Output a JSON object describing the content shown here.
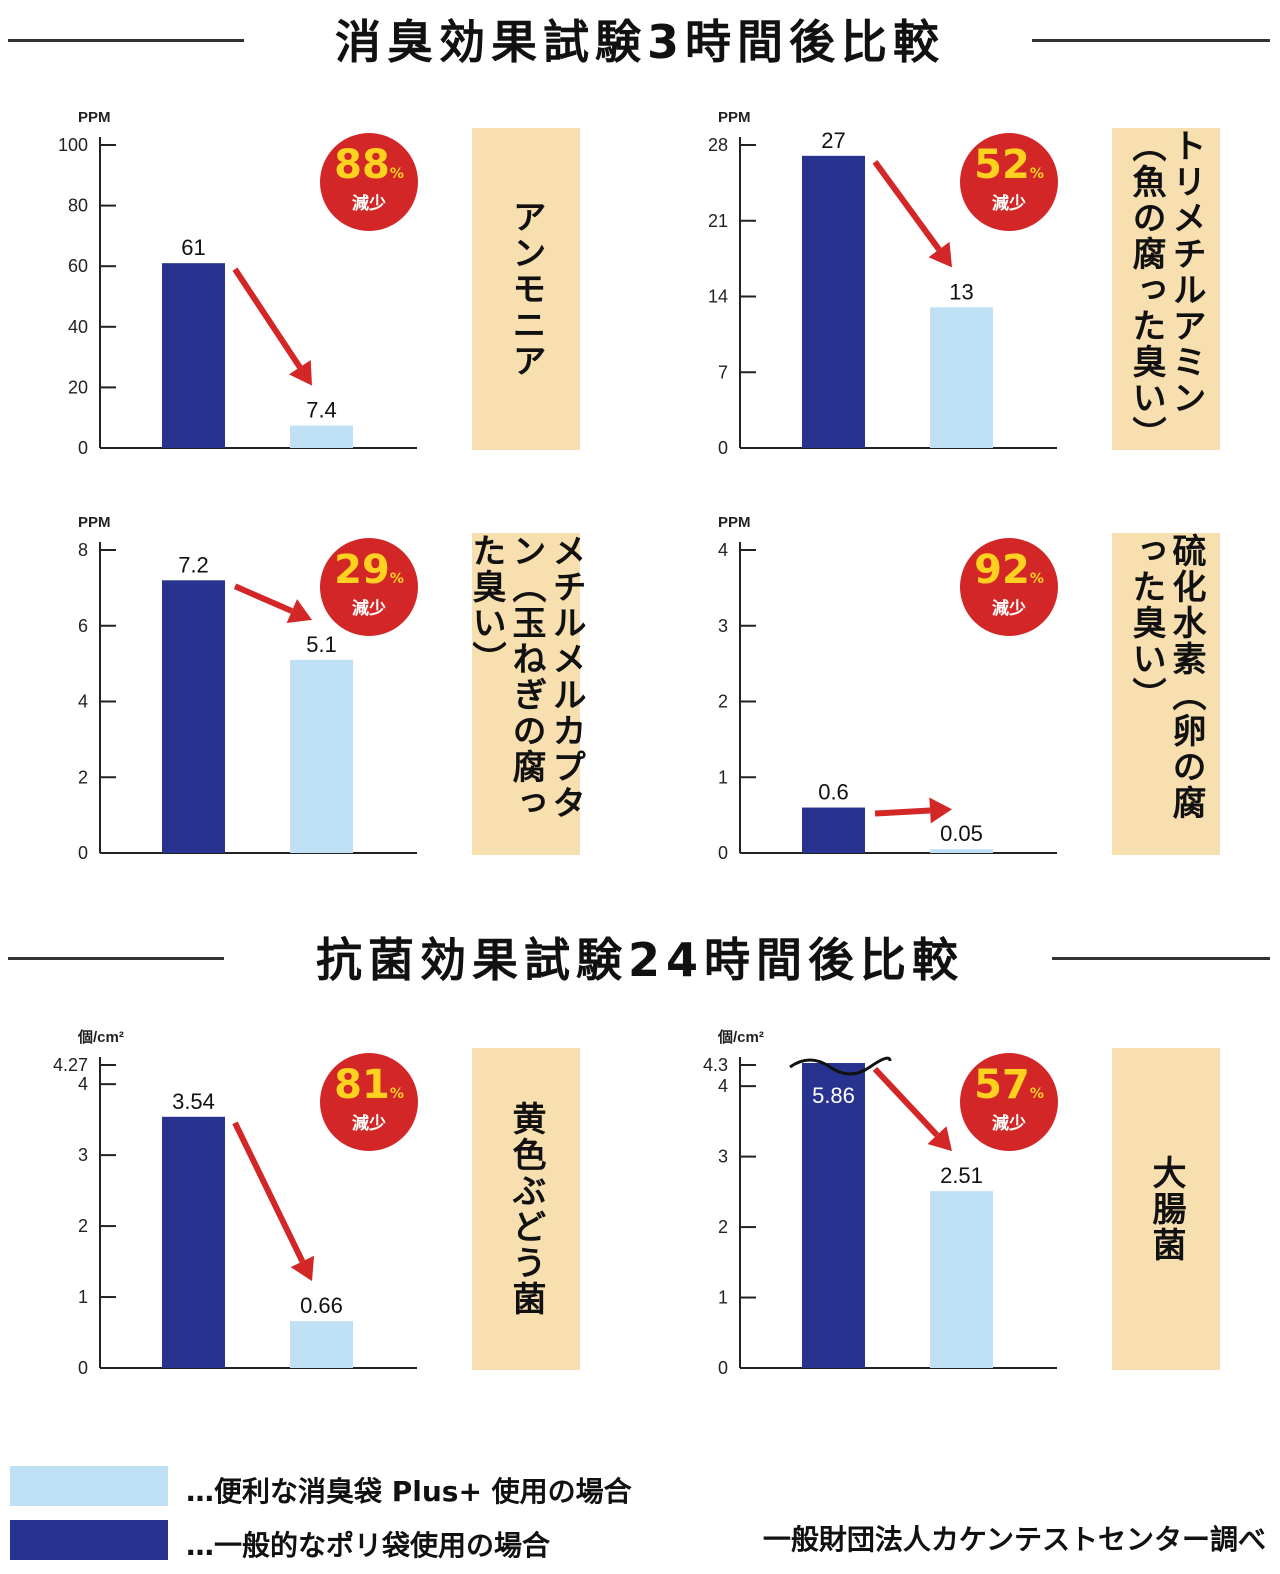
{
  "titles": {
    "odor": "消臭効果試験3時間後比較",
    "bacteria": "抗菌効果試験24時間後比較"
  },
  "colors": {
    "general_bag": "#27338f",
    "plus_bag": "#bfe0f5",
    "badge": "#d32626",
    "badge_pct": "#ffd21f",
    "label_box": "#f8dfb0"
  },
  "legend": {
    "plus": "…便利な消臭袋 Plus+ 使用の場合",
    "general": "…一般的なポリ袋使用の場合"
  },
  "credit": "一般財団法人カケンテストセンター調べ",
  "chart_data": [
    {
      "type": "bar",
      "unit": "PPM",
      "name": "アンモニア",
      "reduction": "88",
      "reduction_unit": "%",
      "reduction_label": "減少",
      "categories": [
        "一般的なポリ袋",
        "便利な消臭袋 Plus+"
      ],
      "values": [
        61,
        7.4
      ],
      "value_labels": [
        "61",
        "7.4"
      ],
      "ylim": [
        0,
        100
      ],
      "ticks": [
        "0",
        "20",
        "40",
        "60",
        "80",
        "100"
      ]
    },
    {
      "type": "bar",
      "unit": "PPM",
      "name": "トリメチルアミン（魚の腐った臭い）",
      "reduction": "52",
      "reduction_unit": "%",
      "reduction_label": "減少",
      "categories": [
        "一般的なポリ袋",
        "便利な消臭袋 Plus+"
      ],
      "values": [
        27,
        13
      ],
      "value_labels": [
        "27",
        "13"
      ],
      "ylim": [
        0,
        28
      ],
      "ticks": [
        "0",
        "7",
        "14",
        "21",
        "28"
      ]
    },
    {
      "type": "bar",
      "unit": "PPM",
      "name": "メチルメルカプタン（玉ねぎの腐った臭い）",
      "reduction": "29",
      "reduction_unit": "%",
      "reduction_label": "減少",
      "categories": [
        "一般的なポリ袋",
        "便利な消臭袋 Plus+"
      ],
      "values": [
        7.2,
        5.1
      ],
      "value_labels": [
        "7.2",
        "5.1"
      ],
      "ylim": [
        0,
        8
      ],
      "ticks": [
        "0",
        "2",
        "4",
        "6",
        "8"
      ]
    },
    {
      "type": "bar",
      "unit": "PPM",
      "name": "硫化水素（卵の腐った臭い）",
      "reduction": "92",
      "reduction_unit": "%",
      "reduction_label": "減少",
      "categories": [
        "一般的なポリ袋",
        "便利な消臭袋 Plus+"
      ],
      "values": [
        0.6,
        0.05
      ],
      "value_labels": [
        "0.6",
        "0.05"
      ],
      "ylim": [
        0,
        4
      ],
      "ticks": [
        "0",
        "1",
        "2",
        "3",
        "4"
      ]
    },
    {
      "type": "bar",
      "unit": "個/cm²",
      "name": "黄色ぶどう菌",
      "reduction": "81",
      "reduction_unit": "%",
      "reduction_label": "減少",
      "categories": [
        "一般的なポリ袋",
        "便利な消臭袋 Plus+"
      ],
      "values": [
        3.54,
        0.66
      ],
      "value_labels": [
        "3.54",
        "0.66"
      ],
      "ylim": [
        0,
        4.27
      ],
      "ticks": [
        "0",
        "1",
        "2",
        "3",
        "4",
        "4.27"
      ]
    },
    {
      "type": "bar",
      "unit": "個/cm²",
      "name": "大腸菌",
      "reduction": "57",
      "reduction_unit": "%",
      "reduction_label": "減少",
      "categories": [
        "一般的なポリ袋",
        "便利な消臭袋 Plus+"
      ],
      "values": [
        5.86,
        2.51
      ],
      "value_labels": [
        "5.86",
        "2.51"
      ],
      "ylim": [
        0,
        4.3
      ],
      "axis_break": true,
      "ticks": [
        "0",
        "1",
        "2",
        "3",
        "4",
        "4.3"
      ]
    }
  ]
}
